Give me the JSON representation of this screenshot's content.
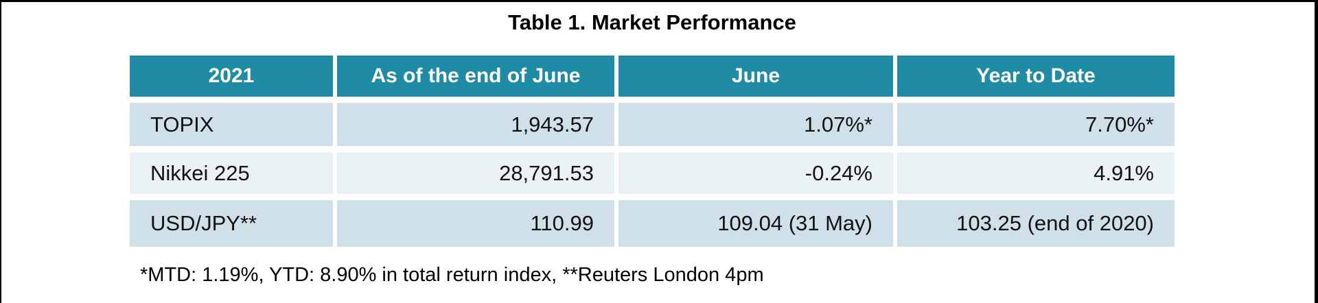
{
  "document": {
    "title": "Table 1. Market Performance",
    "footnote": "*MTD: 1.19%, YTD: 8.90% in total return index, **Reuters London 4pm"
  },
  "table": {
    "header": [
      "2021",
      "As of the end of June",
      "June",
      "Year to Date"
    ],
    "rows": [
      {
        "label": "TOPIX",
        "values": [
          "1,943.57",
          "1.07%*",
          "7.70%*"
        ]
      },
      {
        "label": "Nikkei 225",
        "values": [
          "28,791.53",
          "-0.24%",
          "4.91%"
        ]
      },
      {
        "label": "USD/JPY**",
        "values": [
          "110.99",
          "109.04 (31 May)",
          "103.25 (end of 2020)"
        ]
      }
    ]
  },
  "chart_data": {
    "type": "table",
    "title": "Table 1. Market Performance",
    "columns": [
      "2021",
      "As of the end of June",
      "June",
      "Year to Date"
    ],
    "rows": [
      [
        "TOPIX",
        "1,943.57",
        "1.07%*",
        "7.70%*"
      ],
      [
        "Nikkei 225",
        "28,791.53",
        "-0.24%",
        "4.91%"
      ],
      [
        "USD/JPY**",
        "110.99",
        "109.04 (31 May)",
        "103.25 (end of 2020)"
      ]
    ],
    "notes": "*MTD: 1.19%, YTD: 8.90% in total return index, **Reuters London 4pm"
  },
  "colors": {
    "header_bg": "#1f8ba5",
    "header_text": "#ffffff",
    "row_odd_bg": "#cfe0e8",
    "row_even_bg": "#e9f1f5",
    "body_text": "#111111",
    "page_border": "#000000"
  }
}
